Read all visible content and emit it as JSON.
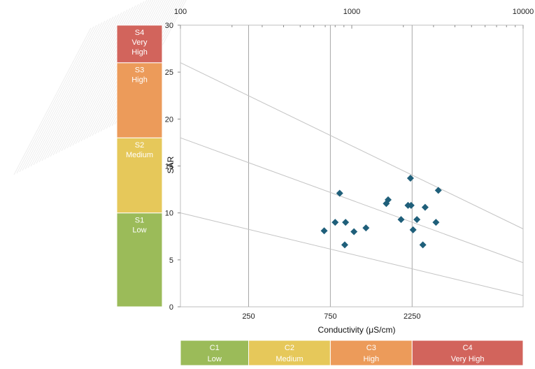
{
  "chart_data": {
    "type": "scatter",
    "title": "",
    "xlabel": "Conductivity (μS/cm)",
    "ylabel": "SAR",
    "x_scale": "log",
    "xlim": [
      100,
      10000
    ],
    "ylim": [
      0,
      30
    ],
    "top_ticks": [
      {
        "value": 100,
        "label": "100"
      },
      {
        "value": 1000,
        "label": "1000"
      },
      {
        "value": 10000,
        "label": "10000"
      }
    ],
    "bottom_ticks": [
      {
        "value": 250,
        "label": "250"
      },
      {
        "value": 750,
        "label": "750"
      },
      {
        "value": 2250,
        "label": "2250"
      }
    ],
    "y_ticks": [
      0,
      5,
      10,
      15,
      20,
      25,
      30
    ],
    "class_boundaries_x": [
      250,
      750,
      2250
    ],
    "sar_lines": [
      {
        "y_at_xmin": 10,
        "y_at_xmax": 1.2
      },
      {
        "y_at_xmin": 18,
        "y_at_xmax": 4.7
      },
      {
        "y_at_xmin": 26,
        "y_at_xmax": 8.3
      }
    ],
    "points": [
      {
        "x": 690,
        "y": 8.1
      },
      {
        "x": 800,
        "y": 9.0
      },
      {
        "x": 850,
        "y": 12.1
      },
      {
        "x": 910,
        "y": 6.6
      },
      {
        "x": 920,
        "y": 9.0
      },
      {
        "x": 1030,
        "y": 8.0
      },
      {
        "x": 1210,
        "y": 8.4
      },
      {
        "x": 1590,
        "y": 11.0
      },
      {
        "x": 1630,
        "y": 11.4
      },
      {
        "x": 1940,
        "y": 9.3
      },
      {
        "x": 2130,
        "y": 10.8
      },
      {
        "x": 2200,
        "y": 13.7
      },
      {
        "x": 2220,
        "y": 10.8
      },
      {
        "x": 2280,
        "y": 8.2
      },
      {
        "x": 2400,
        "y": 9.3
      },
      {
        "x": 2600,
        "y": 6.6
      },
      {
        "x": 2680,
        "y": 10.6
      },
      {
        "x": 3100,
        "y": 9.0
      },
      {
        "x": 3200,
        "y": 12.4
      }
    ],
    "marker_color": "#1f5f7a"
  },
  "sodium_hazard": [
    {
      "code": "S1",
      "label": "Low",
      "color": "#9bbb59",
      "from": 0,
      "to": 10
    },
    {
      "code": "S2",
      "label": "Medium",
      "color": "#e6c85a",
      "from": 10,
      "to": 18
    },
    {
      "code": "S3",
      "label": "High",
      "color": "#ec9b5a",
      "from": 18,
      "to": 26
    },
    {
      "code": "S4",
      "label": "Very\nHigh",
      "color": "#d2645c",
      "from": 26,
      "to": 30
    }
  ],
  "salinity_hazard": [
    {
      "code": "C1",
      "label": "Low",
      "color": "#9bbb59",
      "from": 100,
      "to": 250
    },
    {
      "code": "C2",
      "label": "Medium",
      "color": "#e6c85a",
      "from": 250,
      "to": 750
    },
    {
      "code": "C3",
      "label": "High",
      "color": "#ec9b5a",
      "from": 750,
      "to": 2250
    },
    {
      "code": "C4",
      "label": "Very High",
      "color": "#d2645c",
      "from": 2250,
      "to": 10000
    }
  ]
}
